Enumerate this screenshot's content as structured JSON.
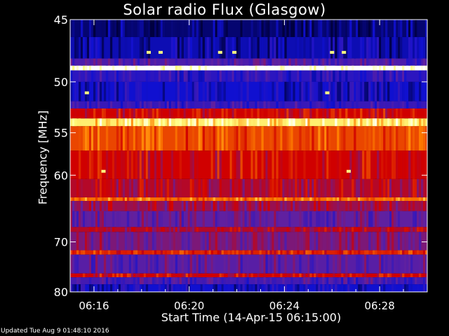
{
  "chart_data": {
    "type": "heatmap",
    "title": "Solar radio Flux (Glasgow)",
    "xlabel": "Start Time (14-Apr-15 06:15:00)",
    "ylabel": "Frequency [MHz]",
    "x_ticks": [
      "06:16",
      "06:20",
      "06:24",
      "06:28"
    ],
    "x_tick_minutes": [
      1,
      5,
      9,
      13
    ],
    "xlim_minutes": [
      0,
      15
    ],
    "y_ticks": [
      45,
      50,
      55,
      60,
      70,
      80
    ],
    "ylim_mhz": [
      45,
      80
    ],
    "y_scale": "reciprocal",
    "bands": [
      {
        "f_low": 45.0,
        "f_high": 46.3,
        "level": 0.05
      },
      {
        "f_low": 46.3,
        "f_high": 48.0,
        "level": 0.12
      },
      {
        "f_low": 48.0,
        "f_high": 48.6,
        "level": 0.3
      },
      {
        "f_low": 48.6,
        "f_high": 49.0,
        "level": 1.0
      },
      {
        "f_low": 49.0,
        "f_high": 50.0,
        "level": 0.22
      },
      {
        "f_low": 50.0,
        "f_high": 51.8,
        "level": 0.15
      },
      {
        "f_low": 51.8,
        "f_high": 52.5,
        "level": 0.25
      },
      {
        "f_low": 52.5,
        "f_high": 53.5,
        "level": 0.55
      },
      {
        "f_low": 53.5,
        "f_high": 54.3,
        "level": 0.88
      },
      {
        "f_low": 54.3,
        "f_high": 57.0,
        "level": 0.66
      },
      {
        "f_low": 57.0,
        "f_high": 60.5,
        "level": 0.55
      },
      {
        "f_low": 60.5,
        "f_high": 63.0,
        "level": 0.5
      },
      {
        "f_low": 63.0,
        "f_high": 63.5,
        "level": 0.72
      },
      {
        "f_low": 63.5,
        "f_high": 65.0,
        "level": 0.45
      },
      {
        "f_low": 65.0,
        "f_high": 67.5,
        "level": 0.35
      },
      {
        "f_low": 67.5,
        "f_high": 68.3,
        "level": 0.5
      },
      {
        "f_low": 68.3,
        "f_high": 71.5,
        "level": 0.4
      },
      {
        "f_low": 71.5,
        "f_high": 72.3,
        "level": 0.6
      },
      {
        "f_low": 72.3,
        "f_high": 76.0,
        "level": 0.33
      },
      {
        "f_low": 76.0,
        "f_high": 76.8,
        "level": 0.55
      },
      {
        "f_low": 76.8,
        "f_high": 78.3,
        "level": 0.28
      },
      {
        "f_low": 78.3,
        "f_high": 80.0,
        "level": 0.15
      }
    ],
    "bursts": [
      {
        "t_min": 1.4,
        "f_mhz": 59.5
      },
      {
        "t_min": 11.7,
        "f_mhz": 59.5
      },
      {
        "t_min": 0.7,
        "f_mhz": 51.0
      },
      {
        "t_min": 10.8,
        "f_mhz": 51.0
      },
      {
        "t_min": 3.3,
        "f_mhz": 47.5
      },
      {
        "t_min": 3.8,
        "f_mhz": 47.5
      },
      {
        "t_min": 6.3,
        "f_mhz": 47.5
      },
      {
        "t_min": 6.9,
        "f_mhz": 47.5
      },
      {
        "t_min": 11.0,
        "f_mhz": 47.5
      },
      {
        "t_min": 11.5,
        "f_mhz": 47.5
      }
    ],
    "colors": {
      "low": "#000040",
      "blue": "#1010d0",
      "purple": "#6020a0",
      "red": "#d00000",
      "orange": "#ff8000",
      "yellow": "#ffff80",
      "white": "#ffffff"
    }
  },
  "footer": {
    "updated": "Updated Tue Aug  9 01:48:10 2016"
  }
}
